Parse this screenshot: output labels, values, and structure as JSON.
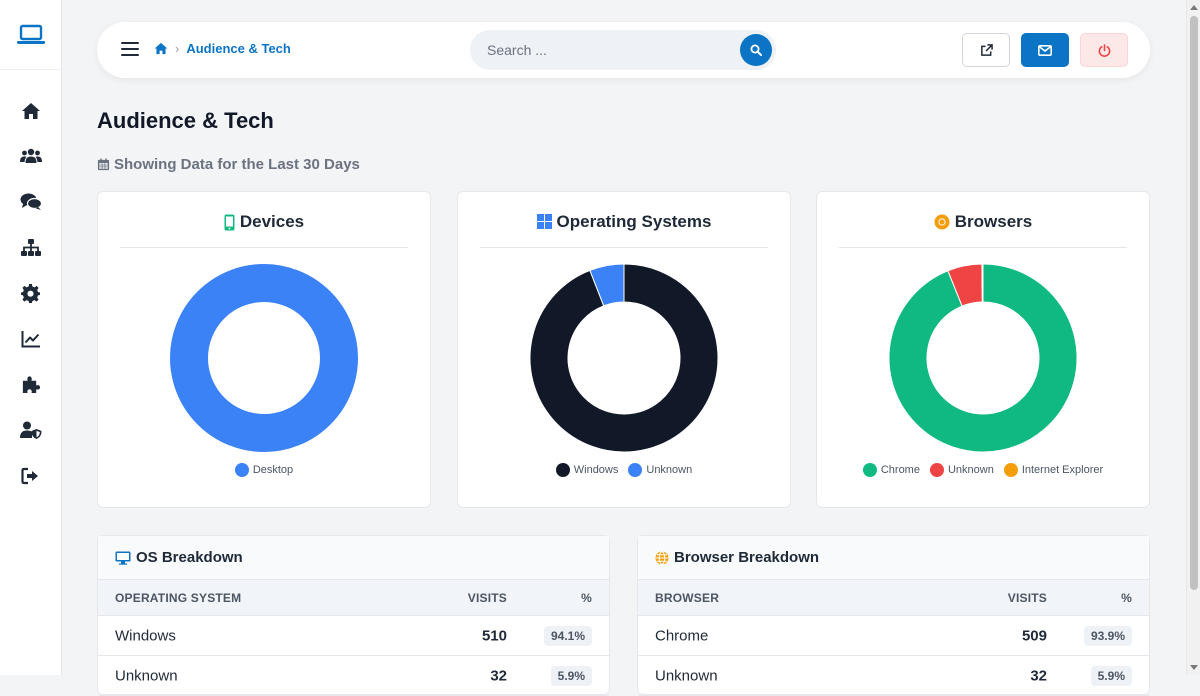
{
  "breadcrumb": {
    "current": "Audience & Tech"
  },
  "search": {
    "placeholder": "Search ..."
  },
  "page": {
    "title": "Audience & Tech",
    "subtitle": "Showing Data for the Last 30 Days"
  },
  "colors": {
    "primary": "#0b74c4",
    "desktop": "#3b82f6",
    "windows": "#111827",
    "unknown_os": "#3b82f6",
    "chrome": "#10b981",
    "unknown_browser": "#ef4444",
    "internet_explorer": "#f59e0b"
  },
  "devices_card": {
    "title": "Devices",
    "legend": [
      "Desktop"
    ]
  },
  "os_card": {
    "title": "Operating Systems",
    "legend": [
      "Windows",
      "Unknown"
    ]
  },
  "browsers_card": {
    "title": "Browsers",
    "legend": [
      "Chrome",
      "Unknown",
      "Internet Explorer"
    ]
  },
  "chart_data": [
    {
      "type": "pie",
      "categories": [
        "Desktop"
      ],
      "values": [
        100
      ],
      "colors": [
        "#3b82f6"
      ],
      "legend": "bottom"
    },
    {
      "type": "pie",
      "categories": [
        "Windows",
        "Unknown"
      ],
      "values": [
        510,
        32
      ],
      "colors": [
        "#111827",
        "#3b82f6"
      ],
      "legend": "bottom"
    },
    {
      "type": "pie",
      "categories": [
        "Chrome",
        "Unknown",
        "Internet Explorer"
      ],
      "values": [
        509,
        32,
        1
      ],
      "colors": [
        "#10b981",
        "#ef4444",
        "#f59e0b"
      ],
      "legend": "bottom"
    }
  ],
  "os_table": {
    "title": "OS Breakdown",
    "headers": [
      "OPERATING SYSTEM",
      "VISITS",
      "%"
    ],
    "rows": [
      {
        "name": "Windows",
        "visits": "510",
        "pct": "94.1%"
      },
      {
        "name": "Unknown",
        "visits": "32",
        "pct": "5.9%"
      }
    ]
  },
  "browser_table": {
    "title": "Browser Breakdown",
    "headers": [
      "BROWSER",
      "VISITS",
      "%"
    ],
    "rows": [
      {
        "name": "Chrome",
        "visits": "509",
        "pct": "93.9%"
      },
      {
        "name": "Unknown",
        "visits": "32",
        "pct": "5.9%"
      }
    ]
  },
  "icons": {
    "sidebar": [
      "laptop-icon",
      "home-icon",
      "users-icon",
      "comments-icon",
      "sitemap-icon",
      "gear-icon",
      "chart-line-icon",
      "puzzle-icon",
      "user-shield-icon",
      "sign-out-icon"
    ]
  }
}
